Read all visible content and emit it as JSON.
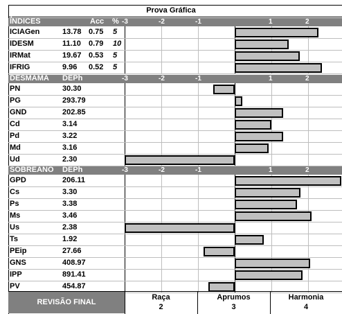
{
  "title": "Prova Gráfica",
  "chart_data": {
    "type": "bar",
    "orientation": "horizontal",
    "xlim": [
      -3,
      3
    ],
    "tick_labels": [
      "-3",
      "-2",
      "-1",
      "1",
      "2",
      "3"
    ],
    "groups": [
      {
        "name": "ÍNDICES",
        "columns": [
          "Acc",
          "%"
        ],
        "rows": [
          {
            "label": "ICIAGen",
            "value_text": "13.78",
            "acc": "0.75",
            "pct": "5",
            "bar": 2.28
          },
          {
            "label": "IDESM",
            "value_text": "11.10",
            "acc": "0.79",
            "pct": "10",
            "bar": 1.48
          },
          {
            "label": "IRMat",
            "value_text": "19.67",
            "acc": "0.53",
            "pct": "5",
            "bar": 1.78
          },
          {
            "label": "IFRIG",
            "value_text": "9.96",
            "acc": "0.52",
            "pct": "5",
            "bar": 2.38
          }
        ]
      },
      {
        "name": "DESMAMA",
        "columns": [
          "DEPh"
        ],
        "rows": [
          {
            "label": "PN",
            "value_text": "30.30",
            "bar": -0.58
          },
          {
            "label": "PG",
            "value_text": "293.79",
            "bar": 0.2
          },
          {
            "label": "GND",
            "value_text": "202.85",
            "bar": 1.32
          },
          {
            "label": "Cd",
            "value_text": "3.14",
            "bar": 1.0
          },
          {
            "label": "Pd",
            "value_text": "3.22",
            "bar": 1.32
          },
          {
            "label": "Md",
            "value_text": "3.16",
            "bar": 0.93
          },
          {
            "label": "Ud",
            "value_text": "2.30",
            "bar": -3.0
          }
        ]
      },
      {
        "name": "SOBREANO",
        "columns": [
          "DEPh"
        ],
        "rows": [
          {
            "label": "GPD",
            "value_text": "206.11",
            "bar": 2.9
          },
          {
            "label": "Cs",
            "value_text": "3.30",
            "bar": 1.8
          },
          {
            "label": "Ps",
            "value_text": "3.38",
            "bar": 1.7
          },
          {
            "label": "Ms",
            "value_text": "3.46",
            "bar": 2.1
          },
          {
            "label": "Us",
            "value_text": "2.38",
            "bar": -3.0
          },
          {
            "label": "Ts",
            "value_text": "1.92",
            "bar": 0.8
          },
          {
            "label": "PEip",
            "value_text": "27.66",
            "bar": -0.85
          },
          {
            "label": "GNS",
            "value_text": "408.97",
            "bar": 2.05
          },
          {
            "label": "IPP",
            "value_text": "891.41",
            "bar": 1.85
          },
          {
            "label": "PV",
            "value_text": "454.87",
            "bar": -0.72
          }
        ]
      }
    ]
  },
  "footer": {
    "label": "REVISÃO FINAL",
    "items": [
      {
        "name": "Raça",
        "value": "2"
      },
      {
        "name": "Aprumos",
        "value": "3"
      },
      {
        "name": "Harmonia",
        "value": "4"
      }
    ]
  },
  "colors": {
    "band": "#808080",
    "bar_fill": "#c0c0c0",
    "bar_border": "#000000",
    "grid": "#bdbdbd"
  }
}
